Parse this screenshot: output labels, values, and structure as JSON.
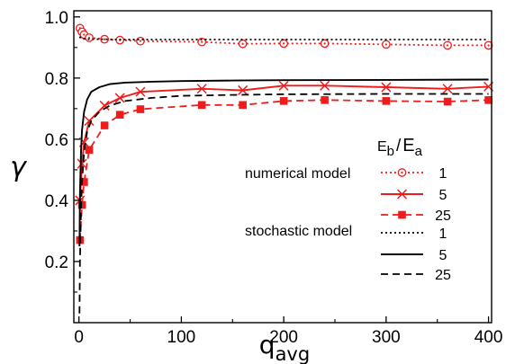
{
  "chart_data": {
    "type": "line",
    "xlabel": "q",
    "xlabel_sub": "avg",
    "ylabel": "γ",
    "xlim": [
      -5,
      403
    ],
    "ylim": [
      0,
      1.02
    ],
    "x_ticks": [
      0,
      100,
      200,
      300,
      400
    ],
    "x_tick_labels": [
      "0",
      "100",
      "200",
      "300",
      "400"
    ],
    "y_ticks": [
      0.2,
      0.4,
      0.6,
      0.8,
      1.0
    ],
    "y_tick_labels": [
      "0.2",
      "0.4",
      "0.6",
      "0.8",
      "1.0"
    ],
    "grid": false,
    "legend": {
      "position": "center-right",
      "header": "E_b / E_a",
      "header_parts": [
        "E",
        "b",
        "/",
        "E",
        "a"
      ],
      "groups": [
        "numerical model",
        "stochastic model"
      ]
    },
    "series": [
      {
        "group": "numerical model",
        "label": "1",
        "color": "#ee1c1c",
        "line": "dotted",
        "marker": "circle-dot",
        "x": [
          1,
          3,
          5,
          10,
          25,
          40,
          60,
          120,
          160,
          200,
          240,
          300,
          360,
          400
        ],
        "y": [
          0.963,
          0.951,
          0.942,
          0.932,
          0.927,
          0.924,
          0.921,
          0.918,
          0.912,
          0.913,
          0.913,
          0.91,
          0.907,
          0.907
        ]
      },
      {
        "group": "numerical model",
        "label": "5",
        "color": "#ee1c1c",
        "line": "solid",
        "marker": "x",
        "x": [
          1,
          3,
          5,
          10,
          25,
          40,
          60,
          120,
          160,
          200,
          240,
          300,
          360,
          400
        ],
        "y": [
          0.4,
          0.52,
          0.59,
          0.66,
          0.71,
          0.735,
          0.755,
          0.765,
          0.76,
          0.775,
          0.775,
          0.77,
          0.765,
          0.772
        ]
      },
      {
        "group": "numerical model",
        "label": "25",
        "color": "#ee1c1c",
        "line": "dashed",
        "marker": "square",
        "x": [
          1,
          3,
          5,
          10,
          25,
          40,
          60,
          120,
          160,
          200,
          240,
          300,
          360,
          400
        ],
        "y": [
          0.27,
          0.385,
          0.46,
          0.565,
          0.645,
          0.68,
          0.698,
          0.712,
          0.712,
          0.725,
          0.728,
          0.725,
          0.723,
          0.728
        ]
      },
      {
        "group": "stochastic model",
        "label": "1",
        "color": "#000000",
        "line": "dotted",
        "marker": "none",
        "x": [
          0.5,
          2,
          5,
          10,
          20,
          40,
          60,
          100,
          200,
          300,
          400
        ],
        "y": [
          0.935,
          0.93,
          0.928,
          0.927,
          0.927,
          0.926,
          0.926,
          0.926,
          0.926,
          0.926,
          0.926
        ]
      },
      {
        "group": "stochastic model",
        "label": "5",
        "color": "#000000",
        "line": "solid",
        "marker": "none",
        "x": [
          0.5,
          1,
          2,
          3,
          5,
          8,
          12,
          20,
          30,
          45,
          70,
          100,
          150,
          200,
          300,
          400
        ],
        "y": [
          0.25,
          0.42,
          0.56,
          0.63,
          0.69,
          0.73,
          0.755,
          0.77,
          0.78,
          0.785,
          0.788,
          0.79,
          0.792,
          0.793,
          0.794,
          0.795
        ]
      },
      {
        "group": "stochastic model",
        "label": "25",
        "color": "#000000",
        "line": "dashed",
        "marker": "none",
        "x": [
          0.5,
          1,
          2,
          3,
          5,
          8,
          12,
          20,
          30,
          45,
          70,
          100,
          150,
          200,
          300,
          400
        ],
        "y": [
          0.03,
          0.2,
          0.37,
          0.46,
          0.56,
          0.625,
          0.66,
          0.69,
          0.71,
          0.725,
          0.735,
          0.742,
          0.745,
          0.747,
          0.748,
          0.748
        ]
      }
    ]
  }
}
